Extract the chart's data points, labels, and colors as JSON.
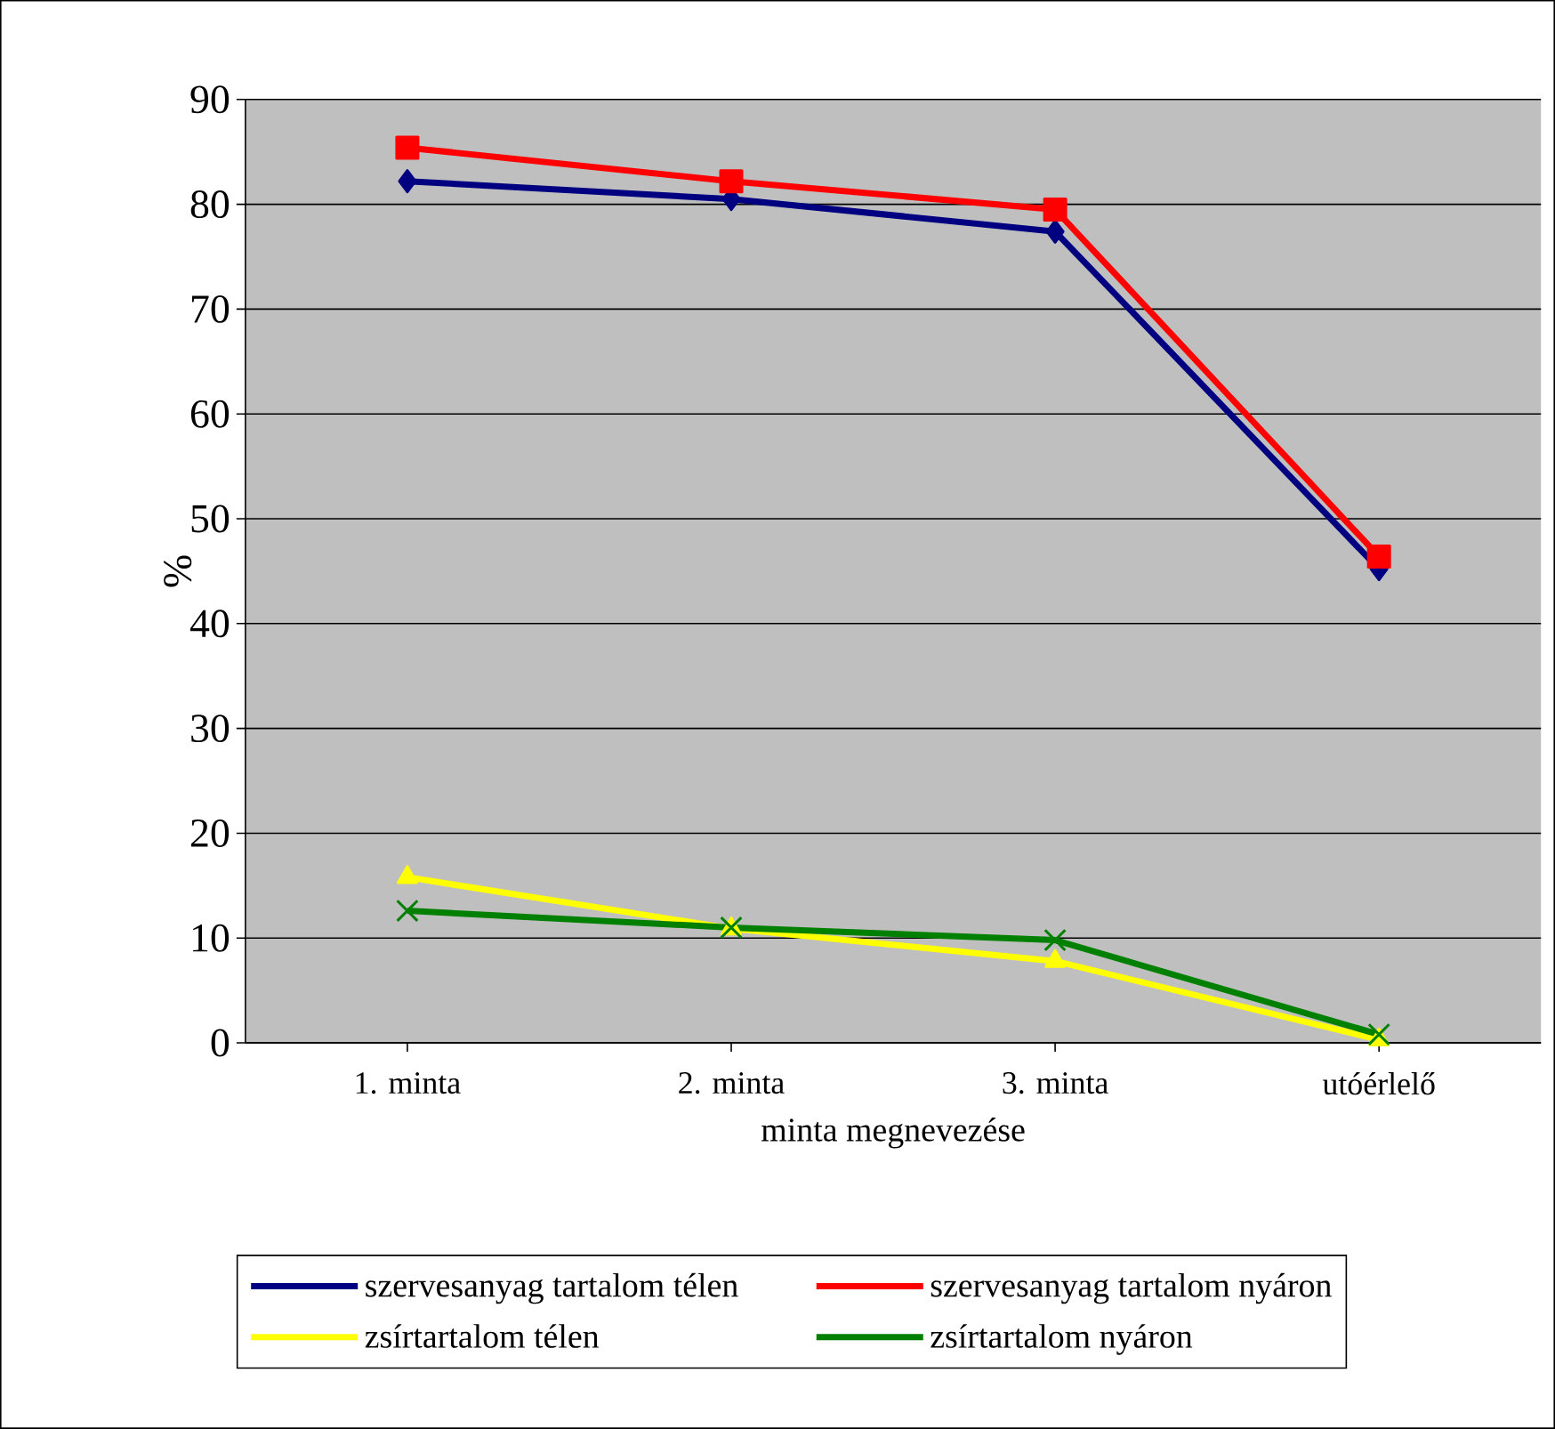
{
  "chart_data": {
    "type": "line",
    "xlabel": "minta megnevezése",
    "ylabel": "%",
    "categories": [
      "1. minta",
      "2. minta",
      "3. minta",
      "utóérlelő"
    ],
    "series": [
      {
        "name": "szervesanyag tartalom télen",
        "color": "#000080",
        "marker": "diamond",
        "values": [
          82.2,
          80.5,
          77.4,
          45.2
        ]
      },
      {
        "name": "szervesanyag tartalom nyáron",
        "color": "#ff0000",
        "marker": "square",
        "values": [
          85.4,
          82.2,
          79.5,
          46.4
        ]
      },
      {
        "name": "zsírtartalom télen",
        "color": "#ffff00",
        "marker": "triangle",
        "values": [
          15.8,
          10.9,
          7.8,
          0.3
        ]
      },
      {
        "name": "zsírtartalom nyáron",
        "color": "#008000",
        "marker": "cross",
        "values": [
          12.6,
          11.0,
          9.8,
          0.8
        ]
      }
    ],
    "ylim": [
      0,
      90
    ],
    "yticks": [
      0,
      10,
      20,
      30,
      40,
      50,
      60,
      70,
      80,
      90
    ],
    "grid": "y",
    "legend": "bottom",
    "line_style": "solid"
  }
}
